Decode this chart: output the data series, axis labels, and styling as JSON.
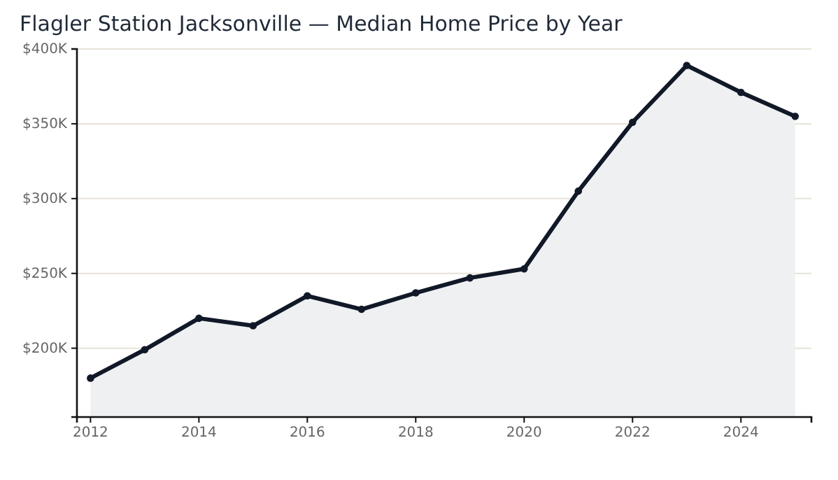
{
  "chart_data": {
    "type": "area",
    "title": "Flagler Station Jacksonville — Median Home Price by Year",
    "x": [
      2012,
      2013,
      2014,
      2015,
      2016,
      2017,
      2018,
      2019,
      2020,
      2021,
      2022,
      2023,
      2024,
      2025
    ],
    "series": [
      {
        "color": "#111827",
        "values": [
          180000,
          199000,
          220000,
          215000,
          235000,
          226000,
          237000,
          247000,
          253000,
          305000,
          351000,
          389000,
          371000,
          355000
        ]
      }
    ],
    "xlim": [
      2011.75,
      2025.3
    ],
    "xticks": [
      2012,
      2014,
      2016,
      2018,
      2020,
      2022,
      2024
    ],
    "ylim": [
      154000,
      400000
    ],
    "yticks": [
      {
        "value": 200000,
        "label": "$200K"
      },
      {
        "value": 250000,
        "label": "$250K"
      },
      {
        "value": 300000,
        "label": "$300K"
      },
      {
        "value": 350000,
        "label": "$350K"
      },
      {
        "value": 400000,
        "label": "$400K"
      }
    ],
    "grid": "y",
    "marker": "circle",
    "line_style": "solid"
  }
}
